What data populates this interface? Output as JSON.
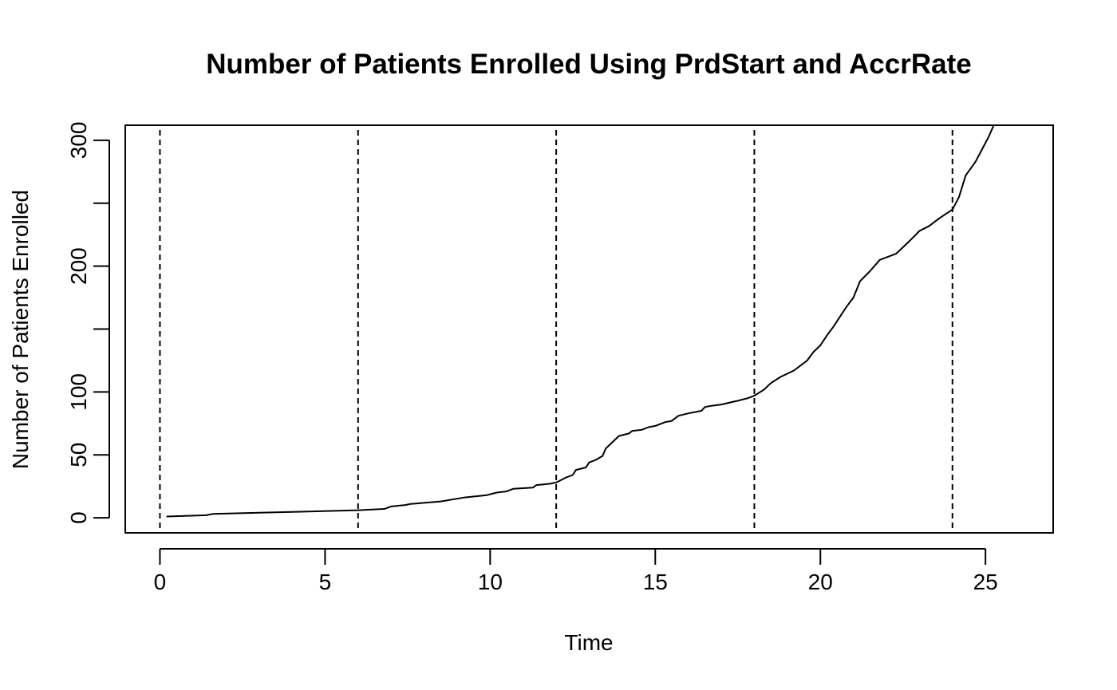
{
  "chart_data": {
    "type": "line",
    "title": "Number of Patients Enrolled Using PrdStart and AccrRate",
    "xlabel": "Time",
    "ylabel": "Number of Patients Enrolled",
    "xlim": [
      -1.05,
      27.05
    ],
    "ylim": [
      -12,
      312
    ],
    "x_ticks": [
      0,
      5,
      10,
      15,
      20,
      25
    ],
    "y_ticks": [
      0,
      50,
      100,
      150,
      200,
      250,
      300
    ],
    "y_tick_labels": [
      "0",
      "50",
      "100",
      "",
      "200",
      "",
      "300"
    ],
    "grid": false,
    "legend": "none",
    "vertical_reference_lines": {
      "x": [
        0,
        6,
        12,
        18,
        24
      ],
      "style": "dashed",
      "color": "#000000"
    },
    "series": [
      {
        "color": "#000000",
        "points": [
          [
            0.2,
            1
          ],
          [
            1.4,
            2
          ],
          [
            1.6,
            3
          ],
          [
            3.0,
            4
          ],
          [
            4.5,
            5
          ],
          [
            6.0,
            6
          ],
          [
            6.8,
            7
          ],
          [
            7.0,
            9
          ],
          [
            7.4,
            10
          ],
          [
            7.6,
            11
          ],
          [
            8.5,
            13
          ],
          [
            9.2,
            16
          ],
          [
            9.9,
            18
          ],
          [
            10.2,
            20
          ],
          [
            10.5,
            21
          ],
          [
            10.7,
            23
          ],
          [
            11.3,
            24
          ],
          [
            11.4,
            26
          ],
          [
            11.8,
            27
          ],
          [
            12.0,
            28
          ],
          [
            12.3,
            32
          ],
          [
            12.5,
            34
          ],
          [
            12.6,
            38
          ],
          [
            12.9,
            40
          ],
          [
            13.0,
            44
          ],
          [
            13.2,
            46
          ],
          [
            13.4,
            49
          ],
          [
            13.5,
            55
          ],
          [
            13.7,
            60
          ],
          [
            13.9,
            65
          ],
          [
            14.2,
            67
          ],
          [
            14.3,
            69
          ],
          [
            14.6,
            70
          ],
          [
            14.8,
            72
          ],
          [
            15.0,
            73
          ],
          [
            15.3,
            76
          ],
          [
            15.5,
            77
          ],
          [
            15.7,
            81
          ],
          [
            16.0,
            83
          ],
          [
            16.4,
            85
          ],
          [
            16.5,
            88
          ],
          [
            16.7,
            89
          ],
          [
            17.0,
            90
          ],
          [
            17.5,
            93
          ],
          [
            17.8,
            95
          ],
          [
            18.0,
            97
          ],
          [
            18.3,
            102
          ],
          [
            18.5,
            107
          ],
          [
            18.8,
            112
          ],
          [
            19.2,
            117
          ],
          [
            19.6,
            125
          ],
          [
            19.8,
            132
          ],
          [
            20.0,
            137
          ],
          [
            20.2,
            145
          ],
          [
            20.4,
            152
          ],
          [
            20.6,
            160
          ],
          [
            20.8,
            168
          ],
          [
            21.0,
            175
          ],
          [
            21.2,
            188
          ],
          [
            21.5,
            196
          ],
          [
            21.8,
            205
          ],
          [
            22.3,
            210
          ],
          [
            22.7,
            220
          ],
          [
            23.0,
            228
          ],
          [
            23.3,
            232
          ],
          [
            23.6,
            238
          ],
          [
            24.0,
            245
          ],
          [
            24.2,
            255
          ],
          [
            24.4,
            272
          ],
          [
            24.7,
            283
          ],
          [
            24.9,
            293
          ],
          [
            25.1,
            303
          ],
          [
            25.25,
            312
          ]
        ]
      }
    ]
  }
}
